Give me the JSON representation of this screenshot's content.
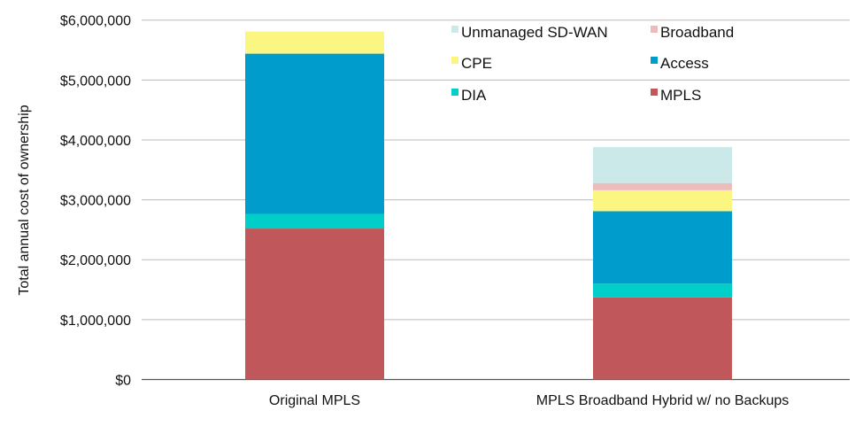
{
  "chart_data": {
    "type": "bar",
    "stacked": true,
    "title": "",
    "xlabel": "",
    "ylabel": "Total annual cost of ownership",
    "ylim": [
      0,
      6000000
    ],
    "yticks": [
      0,
      1000000,
      2000000,
      3000000,
      4000000,
      5000000,
      6000000
    ],
    "ytick_labels": [
      "$0",
      "$1,000,000",
      "$2,000,000",
      "$3,000,000",
      "$4,000,000",
      "$5,000,000",
      "$6,000,000"
    ],
    "grid": true,
    "legend_placement": "top-right",
    "categories": [
      "Original MPLS",
      "MPLS Broadband Hybrid w/ no Backups"
    ],
    "series": [
      {
        "name": "MPLS",
        "color": "#c0575b",
        "values": [
          2520000,
          1370000
        ]
      },
      {
        "name": "DIA",
        "color": "#00cec8",
        "values": [
          240000,
          230000
        ]
      },
      {
        "name": "Access",
        "color": "#009dcc",
        "values": [
          2680000,
          1210000
        ]
      },
      {
        "name": "CPE",
        "color": "#fbf681",
        "values": [
          370000,
          350000
        ]
      },
      {
        "name": "Broadband",
        "color": "#ecbcbc",
        "values": [
          0,
          120000
        ]
      },
      {
        "name": "Unmanaged SD-WAN",
        "color": "#cce9ea",
        "values": [
          0,
          600000
        ]
      }
    ],
    "legend_order": [
      "Unmanaged SD-WAN",
      "Broadband",
      "CPE",
      "Access",
      "DIA",
      "MPLS"
    ]
  }
}
